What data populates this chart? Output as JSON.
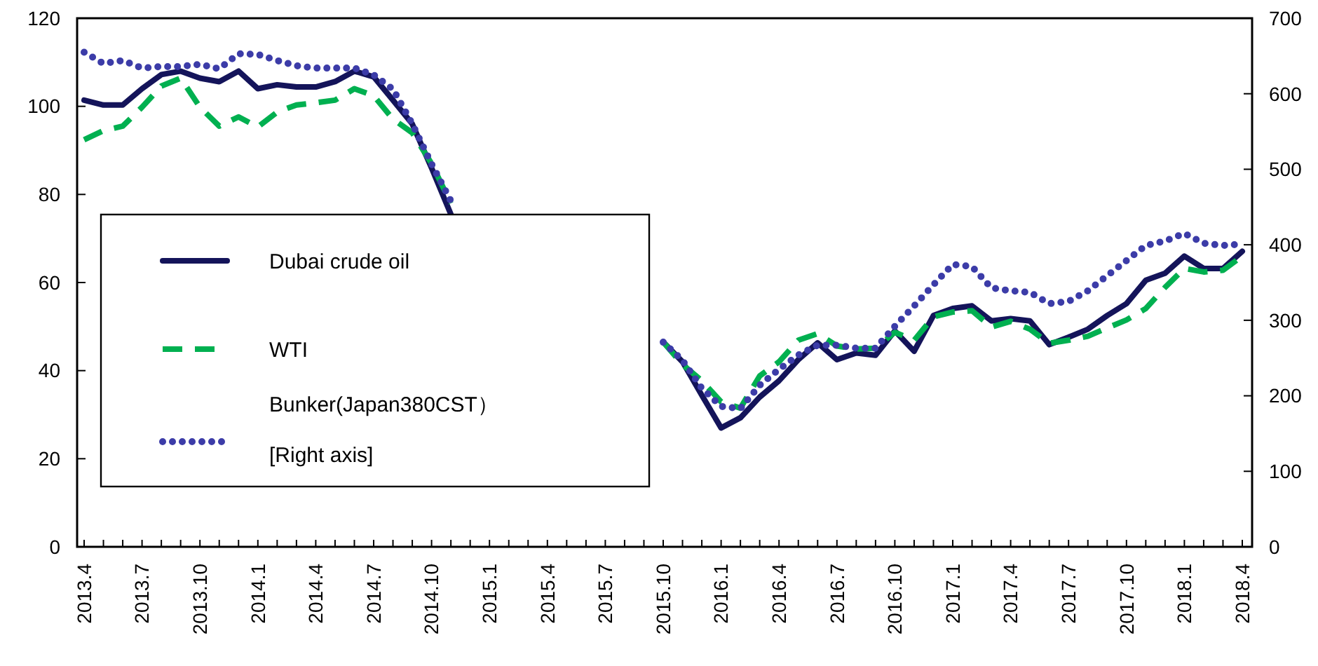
{
  "chart_data": {
    "type": "line",
    "categories": [
      "2013.4",
      null,
      null,
      "2013.7",
      null,
      null,
      "2013.10",
      null,
      null,
      "2014.1",
      null,
      null,
      "2014.4",
      null,
      null,
      "2014.7",
      null,
      null,
      "2014.10",
      null,
      null,
      "2015.1",
      null,
      null,
      "2015.4",
      null,
      null,
      "2015.7",
      null,
      null,
      "2015.10",
      null,
      null,
      "2016.1",
      null,
      null,
      "2016.4",
      null,
      null,
      "2016.7",
      null,
      null,
      "2016.10",
      null,
      null,
      "2017.1",
      null,
      null,
      "2017.4",
      null,
      null,
      "2017.7",
      null,
      null,
      "2017.10",
      null,
      null,
      "2018.1",
      null,
      null,
      "2018.4"
    ],
    "series": [
      {
        "name": "Dubai crude oil",
        "color": "#14145a",
        "line_style": "solid",
        "values": [
          101.4,
          100.3,
          100.3,
          104,
          107.2,
          108,
          106.4,
          105.6,
          108,
          104,
          104.9,
          104.4,
          104.4,
          105.6,
          108,
          106.7,
          101.4,
          96,
          86,
          75.5,
          null,
          null,
          null,
          null,
          null,
          null,
          null,
          null,
          null,
          null,
          46.5,
          42,
          34.4,
          27,
          29.3,
          34,
          37.7,
          42.5,
          46.3,
          42.5,
          44,
          43.5,
          49,
          44.4,
          52.5,
          54.1,
          54.7,
          51.3,
          51.8,
          51.3,
          45.9,
          47.6,
          49.4,
          52.5,
          55.2,
          60.5,
          62.1,
          66,
          63.2,
          63.2,
          67.1
        ]
      },
      {
        "name": "WTI",
        "color": "#00b050",
        "line_style": "dashed",
        "values": [
          92.4,
          94.5,
          95.5,
          99.8,
          104.6,
          106.4,
          99.8,
          95.5,
          97.6,
          95.3,
          98.7,
          100.3,
          100.8,
          101.4,
          104,
          102.4,
          97.1,
          94,
          87,
          78,
          null,
          null,
          null,
          null,
          null,
          null,
          null,
          null,
          null,
          null,
          46.5,
          41.4,
          37.7,
          32.9,
          31.5,
          38.8,
          42,
          46.9,
          48.4,
          45.6,
          44.9,
          45.1,
          48.7,
          46.9,
          52.2,
          53.3,
          53.6,
          49.9,
          51.2,
          49.4,
          46.2,
          46.9,
          47.8,
          49.7,
          51.5,
          54.1,
          58.9,
          63.2,
          62.4,
          62.8,
          66
        ]
      },
      {
        "name": "Bunker(Japan380CST）\n[Right axis]",
        "color": "#3c3ca8",
        "line_style": "dotted",
        "axis": "y2",
        "values": [
          655,
          640,
          644,
          634,
          636,
          636,
          639,
          633,
          653,
          652,
          644,
          637,
          634,
          634,
          634,
          625,
          606,
          560,
          507,
          458,
          null,
          null,
          null,
          null,
          null,
          null,
          null,
          null,
          null,
          null,
          271,
          247,
          210,
          186,
          183,
          214,
          235,
          254,
          267,
          267,
          263,
          263,
          292,
          319,
          347,
          374,
          371,
          343,
          339,
          337,
          322,
          325,
          339,
          359,
          379,
          399,
          405,
          415,
          402,
          399,
          401
        ]
      }
    ],
    "ylim": [
      0,
      120
    ],
    "yticks": [
      0,
      20,
      40,
      60,
      80,
      100,
      120
    ],
    "y2lim": [
      0,
      700
    ],
    "y2ticks": [
      0,
      100,
      200,
      300,
      400,
      500,
      600,
      700
    ],
    "legend": "left",
    "grid": false
  }
}
